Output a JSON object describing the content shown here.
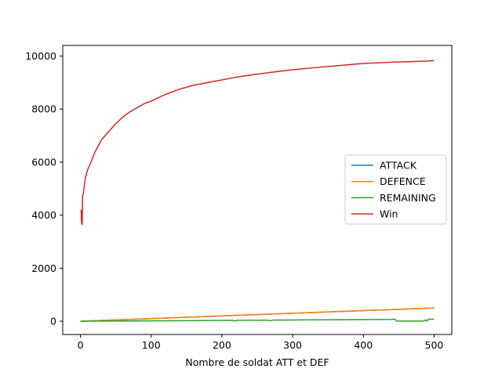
{
  "chart_data": {
    "type": "line",
    "title": "",
    "xlabel": "Nombre de soldat ATT et DEF",
    "ylabel": "",
    "xlim": [
      -25,
      525
    ],
    "ylim": [
      -500,
      10400
    ],
    "xticks": [
      0,
      100,
      200,
      300,
      400,
      500
    ],
    "yticks": [
      0,
      2000,
      4000,
      6000,
      8000,
      10000
    ],
    "xtick_labels": [
      "0",
      "100",
      "200",
      "300",
      "400",
      "500"
    ],
    "ytick_labels": [
      "0",
      "2000",
      "4000",
      "6000",
      "8000",
      "10000"
    ],
    "grid": false,
    "legend_position": "center-right",
    "series": [
      {
        "name": "ATTACK",
        "color": "#1f77b4",
        "x": [
          0,
          100,
          200,
          300,
          400,
          500
        ],
        "y": [
          0,
          100,
          200,
          300,
          400,
          500
        ]
      },
      {
        "name": "DEFENCE",
        "color": "#ff7f0e",
        "x": [
          0,
          100,
          200,
          300,
          400,
          500
        ],
        "y": [
          0,
          100,
          200,
          300,
          400,
          500
        ]
      },
      {
        "name": "REMAINING",
        "color": "#2ca02c",
        "x": [
          0,
          50,
          100,
          150,
          200,
          215,
          218,
          222,
          225,
          265,
          268,
          272,
          300,
          350,
          400,
          440,
          445,
          447,
          450,
          470,
          485,
          488,
          490,
          492,
          495,
          500
        ],
        "y": [
          0,
          8,
          15,
          22,
          30,
          32,
          10,
          35,
          35,
          40,
          15,
          42,
          47,
          55,
          62,
          68,
          72,
          5,
          5,
          5,
          5,
          50,
          10,
          70,
          75,
          80
        ]
      },
      {
        "name": "Win",
        "color": "#d62728",
        "x": [
          1,
          1.5,
          2,
          2.5,
          3,
          4,
          5,
          7,
          10,
          15,
          20,
          25,
          30,
          40,
          50,
          60,
          70,
          80,
          90,
          100,
          120,
          140,
          160,
          180,
          200,
          220,
          240,
          260,
          280,
          300,
          330,
          360,
          400,
          440,
          480,
          490,
          500
        ],
        "y": [
          4200,
          3700,
          4100,
          3650,
          4700,
          4800,
          5000,
          5400,
          5700,
          6000,
          6350,
          6600,
          6850,
          7150,
          7450,
          7700,
          7900,
          8050,
          8200,
          8300,
          8550,
          8750,
          8900,
          9000,
          9100,
          9200,
          9280,
          9350,
          9420,
          9480,
          9560,
          9630,
          9720,
          9770,
          9800,
          9810,
          9830
        ]
      }
    ]
  }
}
